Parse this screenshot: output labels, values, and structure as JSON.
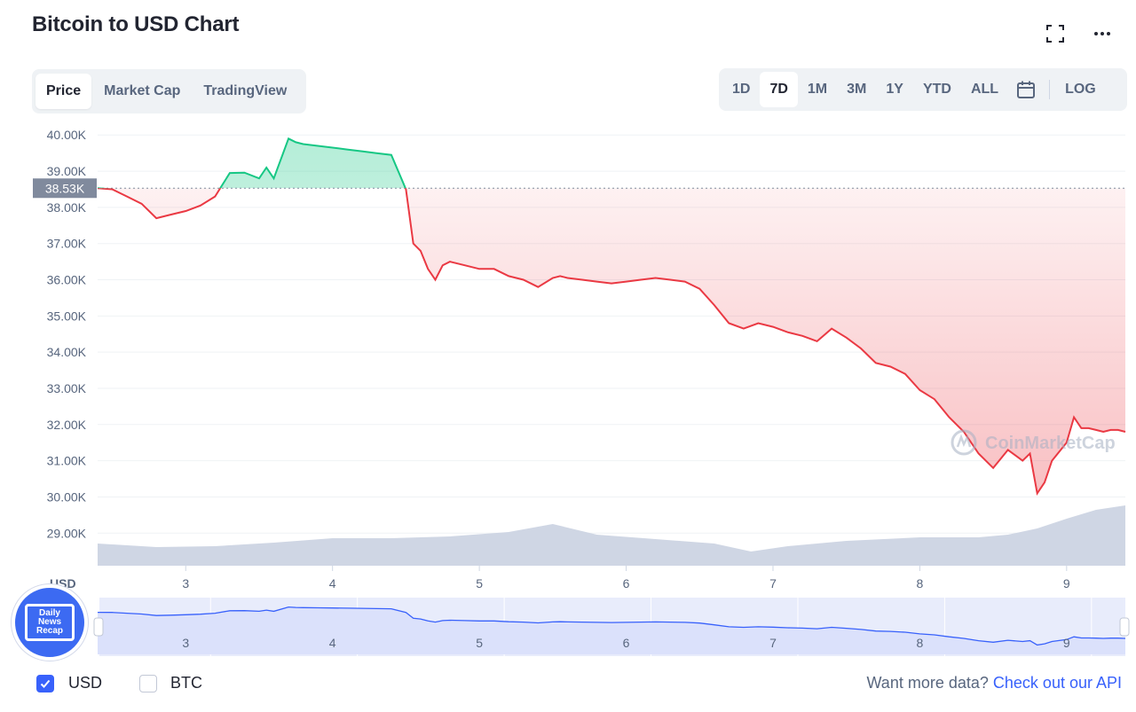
{
  "header": {
    "title": "Bitcoin to USD Chart",
    "expand_icon": "expand-icon",
    "more_icon": "more-horizontal-icon"
  },
  "tabs": [
    {
      "label": "Price",
      "active": true
    },
    {
      "label": "Market Cap",
      "active": false
    },
    {
      "label": "TradingView",
      "active": false
    }
  ],
  "ranges": [
    {
      "label": "1D",
      "active": false
    },
    {
      "label": "7D",
      "active": true
    },
    {
      "label": "1M",
      "active": false
    },
    {
      "label": "3M",
      "active": false
    },
    {
      "label": "1Y",
      "active": false
    },
    {
      "label": "YTD",
      "active": false
    },
    {
      "label": "ALL",
      "active": false
    }
  ],
  "calendar_icon": "calendar-icon",
  "log_label": "LOG",
  "watermark": "CoinMarketCap",
  "currency_label": "USD",
  "badge": {
    "line1": "Daily",
    "line2": "News",
    "line3": "Recap"
  },
  "footer": {
    "usd_label": "USD",
    "btc_label": "BTC",
    "api_prefix": "Want more data?",
    "api_link": "Check out our API"
  },
  "colors": {
    "up": "#16c784",
    "down": "#ea3943",
    "accent": "#3861fb",
    "volume": "#cfd6e4",
    "reference": "#808a9d"
  },
  "chart_data": {
    "type": "line",
    "title": "Bitcoin to USD Chart",
    "reference_value": 38530,
    "reference_label": "38.53K",
    "ylim": [
      28100,
      40300
    ],
    "xlim": [
      2.4,
      9.4
    ],
    "y_ticks": [
      {
        "value": 40000,
        "label": "40.00K"
      },
      {
        "value": 39000,
        "label": "39.00K"
      },
      {
        "value": 38000,
        "label": "38.00K"
      },
      {
        "value": 37000,
        "label": "37.00K"
      },
      {
        "value": 36000,
        "label": "36.00K"
      },
      {
        "value": 35000,
        "label": "35.00K"
      },
      {
        "value": 34000,
        "label": "34.00K"
      },
      {
        "value": 33000,
        "label": "33.00K"
      },
      {
        "value": 32000,
        "label": "32.00K"
      },
      {
        "value": 31000,
        "label": "31.00K"
      },
      {
        "value": 30000,
        "label": "30.00K"
      },
      {
        "value": 29000,
        "label": "29.00K"
      }
    ],
    "x_ticks": [
      {
        "value": 3,
        "label": "3"
      },
      {
        "value": 4,
        "label": "4"
      },
      {
        "value": 5,
        "label": "5"
      },
      {
        "value": 6,
        "label": "6"
      },
      {
        "value": 7,
        "label": "7"
      },
      {
        "value": 8,
        "label": "8"
      },
      {
        "value": 9,
        "label": "9"
      }
    ],
    "series": [
      {
        "x": [
          2.4,
          2.5,
          2.6,
          2.7,
          2.8,
          2.9,
          3.0,
          3.1,
          3.2,
          3.3,
          3.4,
          3.5,
          3.55,
          3.6,
          3.7,
          3.75,
          3.8,
          3.9,
          4.0,
          4.1,
          4.2,
          4.3,
          4.4,
          4.5,
          4.55,
          4.6,
          4.65,
          4.7,
          4.75,
          4.8,
          4.9,
          5.0,
          5.1,
          5.2,
          5.3,
          5.4,
          5.5,
          5.55,
          5.6,
          5.7,
          5.8,
          5.9,
          6.0,
          6.1,
          6.2,
          6.3,
          6.4,
          6.5,
          6.6,
          6.7,
          6.8,
          6.9,
          7.0,
          7.1,
          7.2,
          7.3,
          7.4,
          7.5,
          7.6,
          7.7,
          7.8,
          7.9,
          8.0,
          8.1,
          8.2,
          8.3,
          8.4,
          8.5,
          8.6,
          8.7,
          8.75,
          8.8,
          8.85,
          8.9,
          9.0,
          9.05,
          9.1,
          9.15,
          9.2,
          9.25,
          9.3,
          9.35,
          9.4
        ],
        "y": [
          38530,
          38500,
          38300,
          38100,
          37700,
          37800,
          37900,
          38050,
          38300,
          38950,
          38960,
          38800,
          39100,
          38800,
          39900,
          39800,
          39750,
          39700,
          39650,
          39600,
          39550,
          39500,
          39450,
          38500,
          37000,
          36800,
          36300,
          36000,
          36400,
          36500,
          36400,
          36300,
          36300,
          36100,
          36000,
          35800,
          36050,
          36100,
          36050,
          36000,
          35950,
          35900,
          35950,
          36000,
          36050,
          36000,
          35950,
          35750,
          35300,
          34800,
          34650,
          34800,
          34700,
          34550,
          34450,
          34300,
          34650,
          34400,
          34100,
          33700,
          33600,
          33400,
          32950,
          32700,
          32200,
          31800,
          31200,
          30800,
          31300,
          31000,
          31200,
          30100,
          30400,
          31000,
          31500,
          32200,
          31900,
          31900,
          31850,
          31800,
          31850,
          31850,
          31800
        ]
      }
    ],
    "volume": {
      "x": [
        2.4,
        2.8,
        3.2,
        3.6,
        4.0,
        4.4,
        4.8,
        5.2,
        5.5,
        5.8,
        6.2,
        6.6,
        6.85,
        7.1,
        7.5,
        8.0,
        8.4,
        8.6,
        8.8,
        9.0,
        9.2,
        9.4
      ],
      "level": [
        0.25,
        0.21,
        0.22,
        0.26,
        0.31,
        0.31,
        0.33,
        0.38,
        0.47,
        0.35,
        0.3,
        0.25,
        0.16,
        0.22,
        0.28,
        0.32,
        0.32,
        0.35,
        0.42,
        0.53,
        0.63,
        0.68
      ]
    },
    "navigator": {
      "x_ticks": [
        "3",
        "4",
        "5",
        "6",
        "7",
        "8",
        "9"
      ]
    }
  }
}
